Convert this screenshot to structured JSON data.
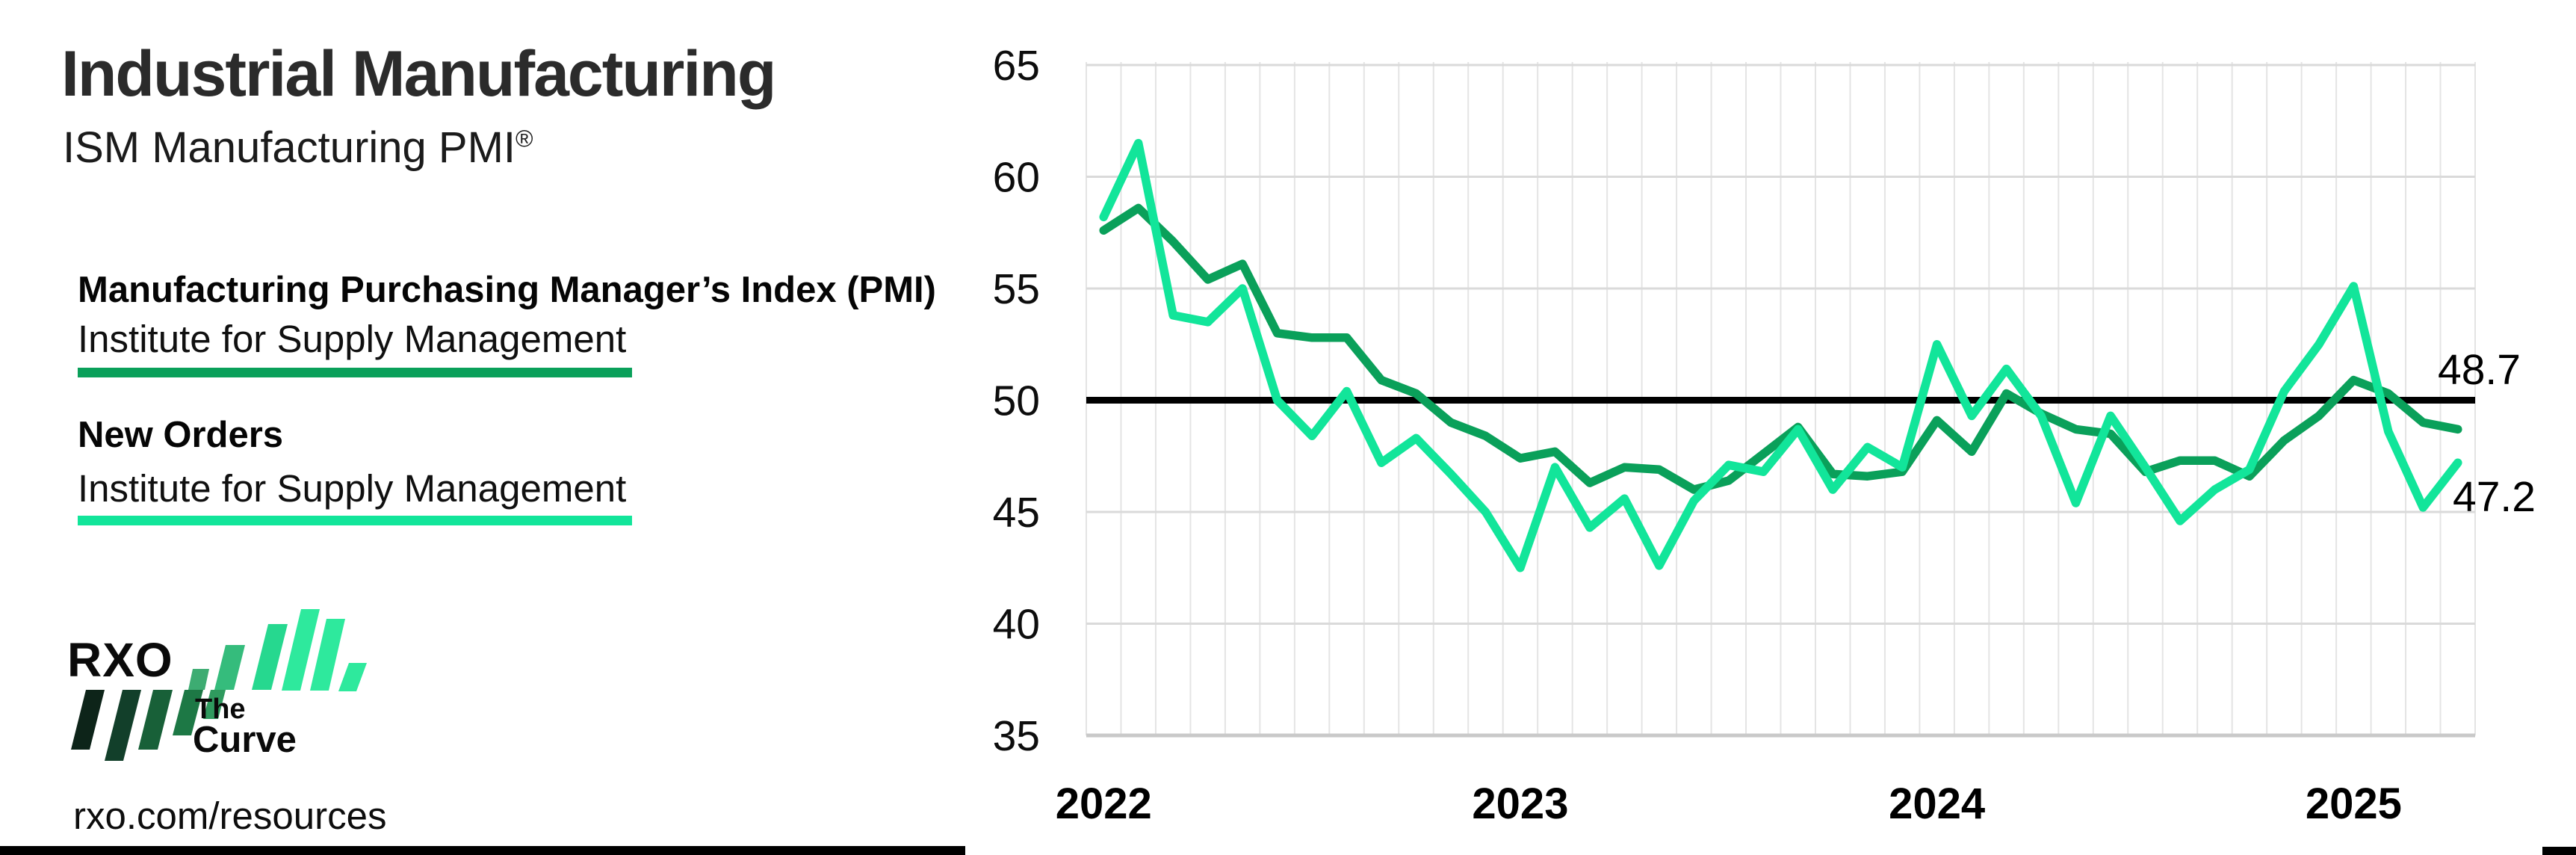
{
  "header": {
    "title": "Industrial Manufacturing",
    "subtitle_text": "ISM Manufacturing PMI",
    "subtitle_mark": "®"
  },
  "legend": {
    "items": [
      {
        "id": "pmi",
        "label": "Manufacturing Purchasing Manager’s Index (PMI)",
        "source": "Institute for Supply Management",
        "color": "#0aa05a"
      },
      {
        "id": "new_orders",
        "label": "New Orders",
        "source": "Institute for Supply Management",
        "color": "#12e59a"
      }
    ]
  },
  "branding": {
    "logo": "RXO",
    "program_line1": "The",
    "program_line2": "Curve",
    "url": "rxo.com/resources"
  },
  "chart_data": {
    "type": "line",
    "x_unit": "month",
    "x_range": "Jan 2022 – Apr 2025",
    "x_tick_labels": [
      "2022",
      "2023",
      "2024",
      "2025"
    ],
    "x_tick_month_index": [
      0,
      12,
      24,
      36
    ],
    "ylim": [
      35,
      65
    ],
    "yticks": [
      35,
      40,
      45,
      50,
      55,
      60,
      65
    ],
    "reference_line": 50,
    "grid": true,
    "legend_position": "left-panel",
    "series": [
      {
        "id": "pmi",
        "name": "Manufacturing Purchasing Manager’s Index (PMI)",
        "color": "#0aa05a",
        "end_label": "48.7",
        "values": [
          57.6,
          58.6,
          57.1,
          55.4,
          56.1,
          53.0,
          52.8,
          52.8,
          50.9,
          50.3,
          49.0,
          48.4,
          47.4,
          47.7,
          46.3,
          47.0,
          46.9,
          46.0,
          46.4,
          47.6,
          48.8,
          46.7,
          46.6,
          46.8,
          49.1,
          47.7,
          50.3,
          49.4,
          48.7,
          48.5,
          46.8,
          47.3,
          47.3,
          46.6,
          48.2,
          49.3,
          50.9,
          50.3,
          49.0,
          48.7
        ]
      },
      {
        "id": "new_orders",
        "name": "New Orders",
        "color": "#12e59a",
        "end_label": "47.2",
        "values": [
          58.2,
          61.5,
          53.8,
          53.5,
          55.0,
          50.0,
          48.4,
          50.4,
          47.2,
          48.3,
          46.7,
          45.0,
          42.5,
          47.0,
          44.3,
          45.6,
          42.6,
          45.5,
          47.1,
          46.8,
          48.7,
          46.0,
          47.9,
          47.0,
          52.5,
          49.3,
          51.4,
          49.3,
          45.4,
          49.3,
          47.0,
          44.6,
          46.0,
          46.9,
          50.4,
          52.5,
          55.1,
          48.6,
          45.2,
          47.2
        ]
      }
    ]
  },
  "colors": {
    "reference_line": "#000000",
    "grid_h": "#dadada",
    "grid_h_bottom": "#c9c9c9",
    "grid_v": "#e4e4e4",
    "axis_text": "#0d0d0d",
    "end_label_text": "#000000",
    "title_text": "#2b2b2b",
    "footer_bar": "#000000"
  }
}
